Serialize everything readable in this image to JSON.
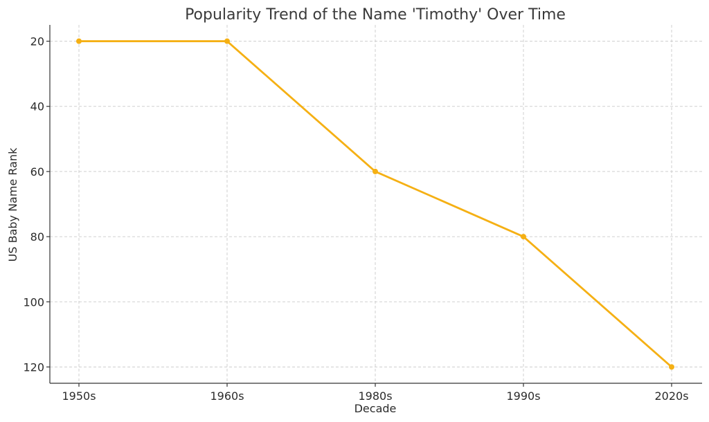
{
  "chart_data": {
    "type": "line",
    "title": "Popularity Trend of the Name 'Timothy' Over Time",
    "xlabel": "Decade",
    "ylabel": "US Baby Name Rank",
    "categories": [
      "1950s",
      "1960s",
      "1980s",
      "1990s",
      "2020s"
    ],
    "series": [
      {
        "values": [
          20,
          20,
          60,
          80,
          120
        ],
        "color": "#f5b014"
      }
    ],
    "yticks": [
      20,
      40,
      60,
      80,
      100,
      120
    ],
    "ylim": [
      15,
      125
    ],
    "y_inverted": true,
    "grid": true,
    "markers": "circle"
  }
}
